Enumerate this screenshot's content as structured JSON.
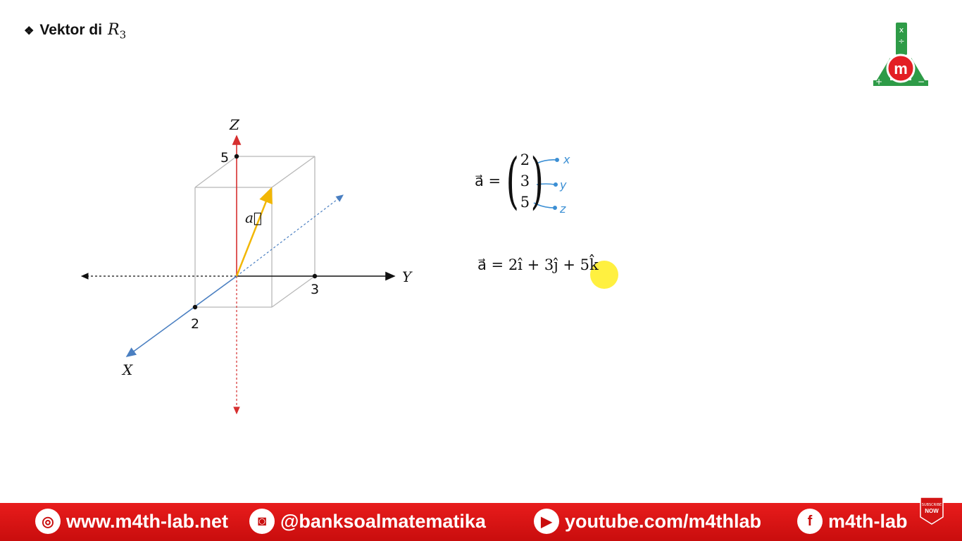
{
  "header": {
    "bullet_icon": "four-diamond-bullet-icon",
    "title_text": "Vektor di",
    "title_math": "R",
    "title_sub": "3"
  },
  "diagram": {
    "axes": {
      "x_label": "X",
      "y_label": "Y",
      "z_label": "Z"
    },
    "ticks": {
      "x": "2",
      "y": "3",
      "z": "5"
    },
    "vector_label": "a⃗",
    "colors": {
      "x_axis": "#4a7fc1",
      "z_axis": "#d62f2f",
      "vector": "#f2b705",
      "box": "#b8b8b8",
      "y_axis": "#111111"
    }
  },
  "equation1": {
    "lhs": "a⃗ =",
    "components": [
      "2",
      "3",
      "5"
    ],
    "annotations": [
      "x",
      "y",
      "z"
    ],
    "annotation_color": "#3b8fd4"
  },
  "equation2": {
    "text": "a⃗ = 2î + 3ĵ + 5k̂"
  },
  "footer": {
    "website": "www.m4th-lab.net",
    "instagram": "@banksoalmatematika",
    "youtube": "youtube.com/m4thlab",
    "facebook": "m4th-lab",
    "badge_line1": "SUBSCRIBE",
    "badge_line2": "NOW"
  }
}
